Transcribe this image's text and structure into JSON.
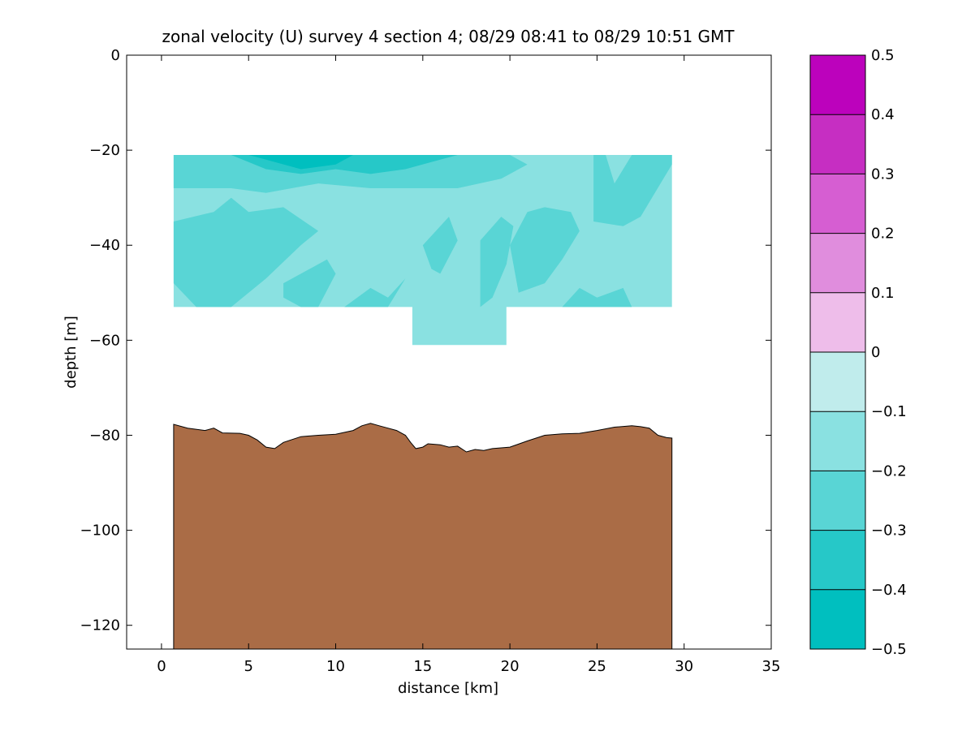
{
  "chart_data": {
    "type": "heatmap",
    "title": "zonal velocity (U) survey 4 section 4; 08/29 08:41 to 08/29 10:51 GMT",
    "xlabel": "distance [km]",
    "ylabel": "depth [m]",
    "xlim": [
      -2,
      35
    ],
    "ylim": [
      -125,
      0
    ],
    "x_ticks": [
      0,
      5,
      10,
      15,
      20,
      25,
      30,
      35
    ],
    "y_ticks": [
      0,
      -20,
      -40,
      -60,
      -80,
      -100,
      -120
    ],
    "colorbar": {
      "levels": [
        -0.5,
        -0.4,
        -0.3,
        -0.2,
        -0.1,
        0,
        0.1,
        0.2,
        0.3,
        0.4,
        0.5
      ],
      "tick_labels": [
        "−0.5",
        "−0.4",
        "−0.3",
        "−0.2",
        "−0.1",
        "0",
        "0.1",
        "0.2",
        "0.3",
        "0.4",
        "0.5"
      ],
      "colors": [
        "#00bfbf",
        "#26c8c8",
        "#59d5d5",
        "#8ae1e1",
        "#c0ecec",
        "#eebdea",
        "#e08ddd",
        "#d65ed2",
        "#c62ec2",
        "#bc02bc"
      ]
    },
    "velocity_regions": [
      {
        "level": -0.1,
        "x": [
          0.7,
          29.3,
          29.3,
          19.8,
          19.8,
          14.4,
          14.4,
          0.7
        ],
        "y": [
          -21,
          -21,
          -53,
          -53,
          -61,
          -61,
          -53,
          -53
        ]
      },
      {
        "level": -0.2,
        "x": [
          0.7,
          5,
          7,
          10,
          13,
          16,
          18,
          20,
          21,
          19.5,
          17,
          12,
          9,
          6,
          4,
          0.7
        ],
        "y": [
          -21,
          -21,
          -21,
          -21,
          -21,
          -21,
          -21,
          -21,
          -23,
          -26,
          -28,
          -28,
          -27,
          -29,
          -28,
          -28
        ]
      },
      {
        "level": -0.2,
        "x": [
          24.8,
          25.5,
          26,
          27,
          29.3,
          29.3,
          27.5,
          26.5,
          24.8
        ],
        "y": [
          -21,
          -21,
          -27,
          -21,
          -21,
          -23,
          -34,
          -36,
          -35
        ]
      },
      {
        "level": -0.2,
        "x": [
          0.7,
          3,
          4,
          5,
          7,
          9,
          8,
          6,
          4,
          2,
          0.7
        ],
        "y": [
          -35,
          -33,
          -30,
          -33,
          -32,
          -37,
          -40,
          -47,
          -53,
          -53,
          -48
        ]
      },
      {
        "level": -0.2,
        "x": [
          7,
          9.5,
          10,
          9,
          8,
          7
        ],
        "y": [
          -48,
          -43,
          -46,
          -53,
          -53,
          -51
        ]
      },
      {
        "level": -0.2,
        "x": [
          15,
          16.5,
          17,
          16,
          15.5
        ],
        "y": [
          -40,
          -34,
          -39,
          -46,
          -45
        ]
      },
      {
        "level": -0.2,
        "x": [
          20,
          21,
          22,
          23.5,
          24,
          23,
          22,
          20.5
        ],
        "y": [
          -40,
          -33,
          -32,
          -33,
          -37,
          -43,
          -48,
          -50
        ]
      },
      {
        "level": -0.2,
        "x": [
          18.3,
          19.5,
          20.2,
          19.8,
          19,
          18.3
        ],
        "y": [
          -39,
          -34,
          -36,
          -44,
          -51,
          -53
        ]
      },
      {
        "level": -0.2,
        "x": [
          10.5,
          12,
          13,
          14,
          13,
          11.5
        ],
        "y": [
          -53,
          -49,
          -51,
          -47,
          -53,
          -53
        ]
      },
      {
        "level": -0.2,
        "x": [
          23,
          24,
          25,
          26.5,
          27,
          26,
          24.5
        ],
        "y": [
          -53,
          -49,
          -51,
          -49,
          -53,
          -53,
          -53
        ]
      },
      {
        "level": -0.3,
        "x": [
          4,
          6,
          7.5,
          9,
          11,
          13,
          15,
          17,
          16,
          14,
          12,
          10,
          8,
          6
        ],
        "y": [
          -21,
          -21,
          -21,
          -21,
          -21,
          -21,
          -21,
          -21,
          -22,
          -24,
          -25,
          -24,
          -25,
          -24
        ]
      },
      {
        "level": -0.4,
        "x": [
          5,
          7,
          9,
          11,
          10,
          8,
          6
        ],
        "y": [
          -21,
          -21,
          -21,
          -21,
          -23,
          -24,
          -22
        ]
      }
    ],
    "bathymetry": {
      "x": [
        0.7,
        1.5,
        2.5,
        3,
        3.5,
        4.5,
        5,
        5.5,
        6,
        6.5,
        7,
        8,
        9,
        10,
        11,
        11.5,
        12,
        12.5,
        13,
        13.5,
        14,
        14.3,
        14.6,
        15,
        15.3,
        16,
        16.5,
        17,
        17.5,
        18,
        18.5,
        19,
        20,
        21,
        22,
        23,
        24,
        25,
        26,
        27,
        27.5,
        28,
        28.5,
        29,
        29.3
      ],
      "y": [
        -77.7,
        -78.5,
        -79,
        -78.5,
        -79.5,
        -79.6,
        -80,
        -81,
        -82.5,
        -82.8,
        -81.5,
        -80.3,
        -80,
        -79.8,
        -79,
        -78,
        -77.5,
        -78,
        -78.5,
        -79,
        -80,
        -81.5,
        -82.8,
        -82.5,
        -81.8,
        -82,
        -82.5,
        -82.3,
        -83.5,
        -83,
        -83.2,
        -82.8,
        -82.5,
        -81.2,
        -80,
        -79.7,
        -79.6,
        -79,
        -78.3,
        -78,
        -78.2,
        -78.5,
        -80,
        -80.5,
        -80.6
      ]
    }
  }
}
